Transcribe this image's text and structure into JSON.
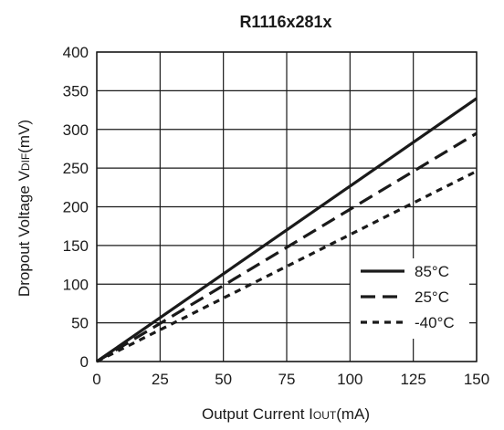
{
  "chart_data": {
    "type": "line",
    "title": "R1116x281x",
    "xlabel": {
      "main": "Output Current I",
      "sub": "OUT",
      "unit": "(mA)"
    },
    "ylabel": {
      "main": "Dropout Voltage V",
      "sub": "DIF",
      "unit": "(mV)"
    },
    "xlim": [
      0,
      150
    ],
    "ylim": [
      0,
      400
    ],
    "x_ticks": [
      "0",
      "25",
      "50",
      "75",
      "100",
      "125",
      "150"
    ],
    "y_ticks": [
      "0",
      "50",
      "100",
      "150",
      "200",
      "250",
      "300",
      "350",
      "400"
    ],
    "grid": true,
    "legend_position": "bottom-right",
    "series": [
      {
        "name": "85°C",
        "style": "solid",
        "x": [
          0,
          150
        ],
        "y": [
          0,
          340
        ]
      },
      {
        "name": "25°C",
        "style": "dashed",
        "x": [
          0,
          150
        ],
        "y": [
          0,
          295
        ]
      },
      {
        "name": "-40°C",
        "style": "dotted",
        "x": [
          0,
          150
        ],
        "y": [
          0,
          246
        ]
      }
    ],
    "colors": {
      "line": "#1a1a1a",
      "grid": "#1a1a1a",
      "background": "#ffffff"
    }
  }
}
